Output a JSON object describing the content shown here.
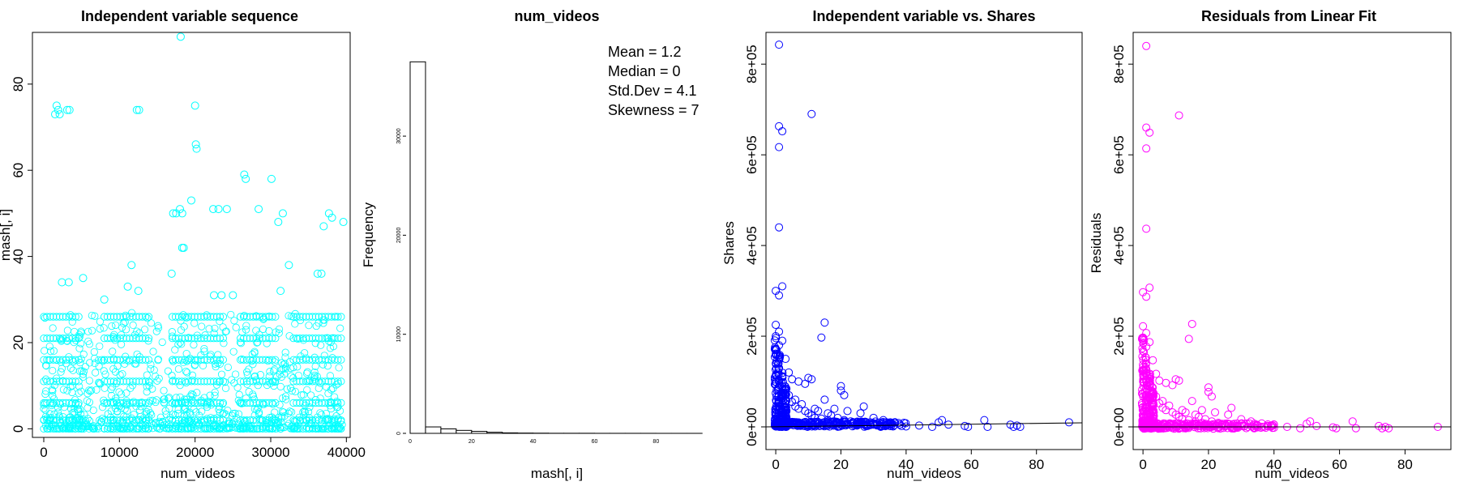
{
  "chart_data": [
    {
      "type": "scatter",
      "title": "Independent variable sequence",
      "xlabel": "num_videos",
      "ylabel": "mash[, i]",
      "xlim": [
        -1500,
        40500
      ],
      "ylim": [
        -2,
        92
      ],
      "xticks": [
        "0",
        "10000",
        "20000",
        "30000",
        "40000"
      ],
      "yticks": [
        "0",
        "20",
        "40",
        "60",
        "80"
      ],
      "point_color": "#00ffff",
      "points": [
        [
          1500,
          73
        ],
        [
          1700,
          75
        ],
        [
          1900,
          74
        ],
        [
          2100,
          73
        ],
        [
          3100,
          74
        ],
        [
          3400,
          74
        ],
        [
          12300,
          74
        ],
        [
          12600,
          74
        ],
        [
          18100,
          91
        ],
        [
          20000,
          75
        ],
        [
          20100,
          66
        ],
        [
          20200,
          65
        ],
        [
          19500,
          53
        ],
        [
          17100,
          50
        ],
        [
          17500,
          50
        ],
        [
          18000,
          51
        ],
        [
          18300,
          50
        ],
        [
          18500,
          42
        ],
        [
          18300,
          42
        ],
        [
          22400,
          51
        ],
        [
          23100,
          51
        ],
        [
          24200,
          51
        ],
        [
          26500,
          59
        ],
        [
          26700,
          58
        ],
        [
          28400,
          51
        ],
        [
          30100,
          58
        ],
        [
          31000,
          48
        ],
        [
          31600,
          50
        ],
        [
          32400,
          38
        ],
        [
          37000,
          47
        ],
        [
          37700,
          50
        ],
        [
          38100,
          49
        ],
        [
          39600,
          48
        ],
        [
          5200,
          35
        ],
        [
          2400,
          34
        ],
        [
          3300,
          34
        ],
        [
          11600,
          38
        ],
        [
          11100,
          33
        ],
        [
          12500,
          32
        ],
        [
          16900,
          36
        ],
        [
          36200,
          36
        ],
        [
          36700,
          36
        ],
        [
          31300,
          32
        ],
        [
          8000,
          30
        ],
        [
          22500,
          31
        ],
        [
          23500,
          31
        ],
        [
          25000,
          31
        ]
      ],
      "band_rows": [
        26,
        21,
        16,
        11,
        6,
        2,
        0
      ],
      "band_segments": [
        [
          0,
          5000
        ],
        [
          8000,
          14000
        ],
        [
          17000,
          24000
        ],
        [
          26000,
          31000
        ],
        [
          33000,
          39500
        ]
      ]
    },
    {
      "type": "bar",
      "title": "num_videos",
      "xlabel": "mash[, i]",
      "ylabel": "Frequency",
      "xlim": [
        0,
        96
      ],
      "ylim": [
        0,
        39000
      ],
      "xticks": [
        "0",
        "20",
        "40",
        "60",
        "80"
      ],
      "yticks": [
        "0",
        "10000",
        "20000",
        "30000"
      ],
      "bin_width": 5,
      "bins": [
        0,
        5,
        10,
        15,
        20,
        25,
        30,
        35,
        40,
        45,
        50,
        55,
        60,
        65,
        70,
        75,
        80,
        85,
        90
      ],
      "values": [
        37500,
        650,
        450,
        300,
        200,
        110,
        50,
        30,
        20,
        10,
        10,
        10,
        5,
        5,
        5,
        5,
        2,
        2,
        2
      ],
      "stats": [
        "Mean = 1.2",
        "Median = 0",
        "Std.Dev = 4.1",
        "Skewness = 7"
      ]
    },
    {
      "type": "scatter",
      "title": "Independent variable vs. Shares",
      "xlabel": "num_videos",
      "ylabel": "Shares",
      "xlim": [
        -3,
        94
      ],
      "ylim": [
        -50000,
        870000
      ],
      "xticks": [
        "0",
        "20",
        "40",
        "60",
        "80"
      ],
      "yticks": [
        "0e+00",
        "2e+05",
        "4e+05",
        "6e+05",
        "8e+05"
      ],
      "point_color": "#0000ff",
      "line": [
        [
          -3,
          0
        ],
        [
          94,
          9000
        ]
      ],
      "points": [
        [
          1,
          843000
        ],
        [
          1,
          663000
        ],
        [
          2,
          652000
        ],
        [
          1,
          617000
        ],
        [
          11,
          690000
        ],
        [
          1,
          440000
        ],
        [
          15,
          230000
        ],
        [
          14,
          197000
        ],
        [
          2,
          310000
        ],
        [
          0,
          300000
        ],
        [
          1,
          290000
        ],
        [
          0,
          225000
        ],
        [
          1,
          210000
        ],
        [
          0,
          200000
        ],
        [
          2,
          190000
        ],
        [
          1,
          180000
        ],
        [
          0,
          170000
        ],
        [
          3,
          150000
        ],
        [
          0,
          140000
        ],
        [
          1,
          130000
        ],
        [
          4,
          120000
        ],
        [
          2,
          110000
        ],
        [
          5,
          105000
        ],
        [
          7,
          100000
        ],
        [
          9,
          95000
        ],
        [
          10,
          108000
        ],
        [
          11,
          105000
        ],
        [
          20,
          90000
        ],
        [
          20,
          80000
        ],
        [
          21,
          70000
        ],
        [
          15,
          60000
        ],
        [
          18,
          40000
        ],
        [
          22,
          35000
        ],
        [
          27,
          45000
        ],
        [
          26,
          30000
        ],
        [
          30,
          20000
        ],
        [
          33,
          15000
        ],
        [
          34,
          10000
        ],
        [
          38,
          5000
        ],
        [
          44,
          3000
        ],
        [
          48,
          0
        ],
        [
          50,
          10000
        ],
        [
          51,
          15000
        ],
        [
          53,
          5000
        ],
        [
          58,
          2000
        ],
        [
          59,
          0
        ],
        [
          64,
          15000
        ],
        [
          65,
          0
        ],
        [
          72,
          5000
        ],
        [
          73,
          0
        ],
        [
          74,
          3000
        ],
        [
          75,
          0
        ],
        [
          90,
          10000
        ],
        [
          3,
          80000
        ],
        [
          6,
          60000
        ],
        [
          8,
          50000
        ],
        [
          12,
          40000
        ],
        [
          13,
          35000
        ],
        [
          16,
          30000
        ],
        [
          17,
          25000
        ],
        [
          19,
          20000
        ],
        [
          21,
          15000
        ],
        [
          23,
          12000
        ],
        [
          24,
          8000
        ],
        [
          25,
          10000
        ],
        [
          28,
          6000
        ],
        [
          29,
          4000
        ],
        [
          31,
          5000
        ],
        [
          32,
          3000
        ],
        [
          35,
          2000
        ],
        [
          36,
          1000
        ],
        [
          40,
          1000
        ],
        [
          4,
          70000
        ],
        [
          5,
          55000
        ],
        [
          6,
          45000
        ],
        [
          7,
          40000
        ],
        [
          9,
          35000
        ],
        [
          10,
          30000
        ],
        [
          11,
          25000
        ],
        [
          12,
          20000
        ],
        [
          14,
          18000
        ],
        [
          16,
          15000
        ],
        [
          18,
          12000
        ],
        [
          19,
          10000
        ],
        [
          20,
          8000
        ],
        [
          22,
          5000
        ]
      ],
      "column_xs": [
        0,
        1,
        2,
        3
      ],
      "column_tops": [
        200000,
        160000,
        120000,
        90000
      ]
    },
    {
      "type": "scatter",
      "title": "Residuals from Linear Fit",
      "xlabel": "num_videos",
      "ylabel": "Residuals",
      "xlim": [
        -3,
        94
      ],
      "ylim": [
        -50000,
        870000
      ],
      "xticks": [
        "0",
        "20",
        "40",
        "60",
        "80"
      ],
      "yticks": [
        "0e+00",
        "2e+05",
        "4e+05",
        "6e+05",
        "8e+05"
      ],
      "point_color": "#ff00ff",
      "line": [
        [
          -3,
          0
        ],
        [
          94,
          0
        ]
      ],
      "points": [
        [
          1,
          840000
        ],
        [
          1,
          660000
        ],
        [
          2,
          649000
        ],
        [
          1,
          614000
        ],
        [
          11,
          687000
        ],
        [
          1,
          437000
        ],
        [
          15,
          227000
        ],
        [
          14,
          194000
        ],
        [
          2,
          307000
        ],
        [
          0,
          297000
        ],
        [
          1,
          287000
        ],
        [
          0,
          222000
        ],
        [
          1,
          207000
        ],
        [
          0,
          197000
        ],
        [
          2,
          187000
        ],
        [
          1,
          177000
        ],
        [
          0,
          167000
        ],
        [
          3,
          147000
        ],
        [
          0,
          137000
        ],
        [
          1,
          127000
        ],
        [
          4,
          117000
        ],
        [
          2,
          107000
        ],
        [
          5,
          102000
        ],
        [
          7,
          97000
        ],
        [
          9,
          92000
        ],
        [
          10,
          105000
        ],
        [
          11,
          102000
        ],
        [
          20,
          87000
        ],
        [
          20,
          77000
        ],
        [
          21,
          67000
        ],
        [
          15,
          57000
        ],
        [
          18,
          37000
        ],
        [
          22,
          32000
        ],
        [
          27,
          42000
        ],
        [
          26,
          27000
        ],
        [
          30,
          17000
        ],
        [
          33,
          12000
        ],
        [
          34,
          7000
        ],
        [
          38,
          2000
        ],
        [
          44,
          0
        ],
        [
          48,
          -3000
        ],
        [
          50,
          7000
        ],
        [
          51,
          12000
        ],
        [
          53,
          2000
        ],
        [
          58,
          -1000
        ],
        [
          59,
          -3000
        ],
        [
          64,
          12000
        ],
        [
          65,
          -3000
        ],
        [
          72,
          2000
        ],
        [
          73,
          -3000
        ],
        [
          74,
          0
        ],
        [
          75,
          -3000
        ],
        [
          90,
          0
        ],
        [
          3,
          77000
        ],
        [
          6,
          57000
        ],
        [
          8,
          47000
        ],
        [
          12,
          37000
        ],
        [
          13,
          32000
        ],
        [
          16,
          27000
        ],
        [
          17,
          22000
        ],
        [
          19,
          17000
        ],
        [
          21,
          12000
        ],
        [
          23,
          9000
        ],
        [
          24,
          5000
        ],
        [
          25,
          7000
        ],
        [
          28,
          3000
        ],
        [
          29,
          1000
        ],
        [
          31,
          2000
        ],
        [
          32,
          0
        ],
        [
          35,
          -1000
        ],
        [
          36,
          -2000
        ],
        [
          40,
          -2000
        ],
        [
          4,
          67000
        ],
        [
          5,
          52000
        ],
        [
          6,
          42000
        ],
        [
          7,
          37000
        ],
        [
          9,
          32000
        ],
        [
          10,
          27000
        ],
        [
          11,
          22000
        ],
        [
          12,
          17000
        ],
        [
          14,
          15000
        ],
        [
          16,
          12000
        ],
        [
          18,
          9000
        ],
        [
          19,
          7000
        ],
        [
          20,
          5000
        ],
        [
          22,
          2000
        ]
      ],
      "column_xs": [
        0,
        1,
        2,
        3
      ],
      "column_tops": [
        197000,
        157000,
        117000,
        87000
      ]
    }
  ]
}
